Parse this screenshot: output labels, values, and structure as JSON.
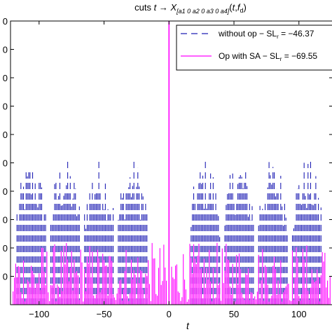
{
  "chart_data": {
    "type": "line",
    "title_parts": {
      "prefix": "cuts ",
      "var": "t",
      "arrow": " → ",
      "func": "X",
      "subscript": "[a1 0 a2 0 a3 0 a4]",
      "args_open": "(",
      "arg1": "t",
      "arg_sep": ",",
      "arg2": "f",
      "arg2_sub": "d",
      "args_close": ")"
    },
    "xlabel": "t",
    "ylabel": "",
    "xlim": [
      -122,
      126
    ],
    "ylim": [
      0,
      1
    ],
    "xticks": [
      -100,
      -50,
      0,
      50,
      100
    ],
    "xtick_labels": [
      "−100",
      "−50",
      "0",
      "50",
      "100"
    ],
    "yticks": [
      0.1,
      0.2,
      0.3,
      0.4,
      0.5,
      0.6,
      0.7,
      0.8,
      0.9,
      1.0
    ],
    "ytick_labels": [
      "0",
      "0",
      "0",
      "0",
      "0",
      "0",
      "0",
      "0",
      "0",
      "0"
    ],
    "grid": false,
    "legend_position": "top-right",
    "series": [
      {
        "name_prefix": "without op − SL",
        "name_sub": "r",
        "name_suffix": " = −46.37",
        "color": "#1f1fb4",
        "style": "dashed",
        "peak": {
          "x": 0,
          "y": 1.0
        },
        "cluster_centers": [
          -106,
          -80,
          -54,
          -28,
          28,
          54,
          80,
          106
        ],
        "cluster_halfwidth": 11,
        "sample_step": 1,
        "sidelobe_max": 0.52,
        "sidelobe_min": 0.08
      },
      {
        "name_prefix": "Op with SA − SL",
        "name_sub": "r",
        "name_suffix": " = −69.55",
        "color": "#ff00ff",
        "style": "solid",
        "peak": {
          "x": 0,
          "y": 1.0
        },
        "sample_step": 1,
        "sidelobe_max": 0.22,
        "sidelobe_min": 0.01
      }
    ]
  },
  "colors": {
    "axes": "#000000",
    "background": "#ffffff"
  }
}
